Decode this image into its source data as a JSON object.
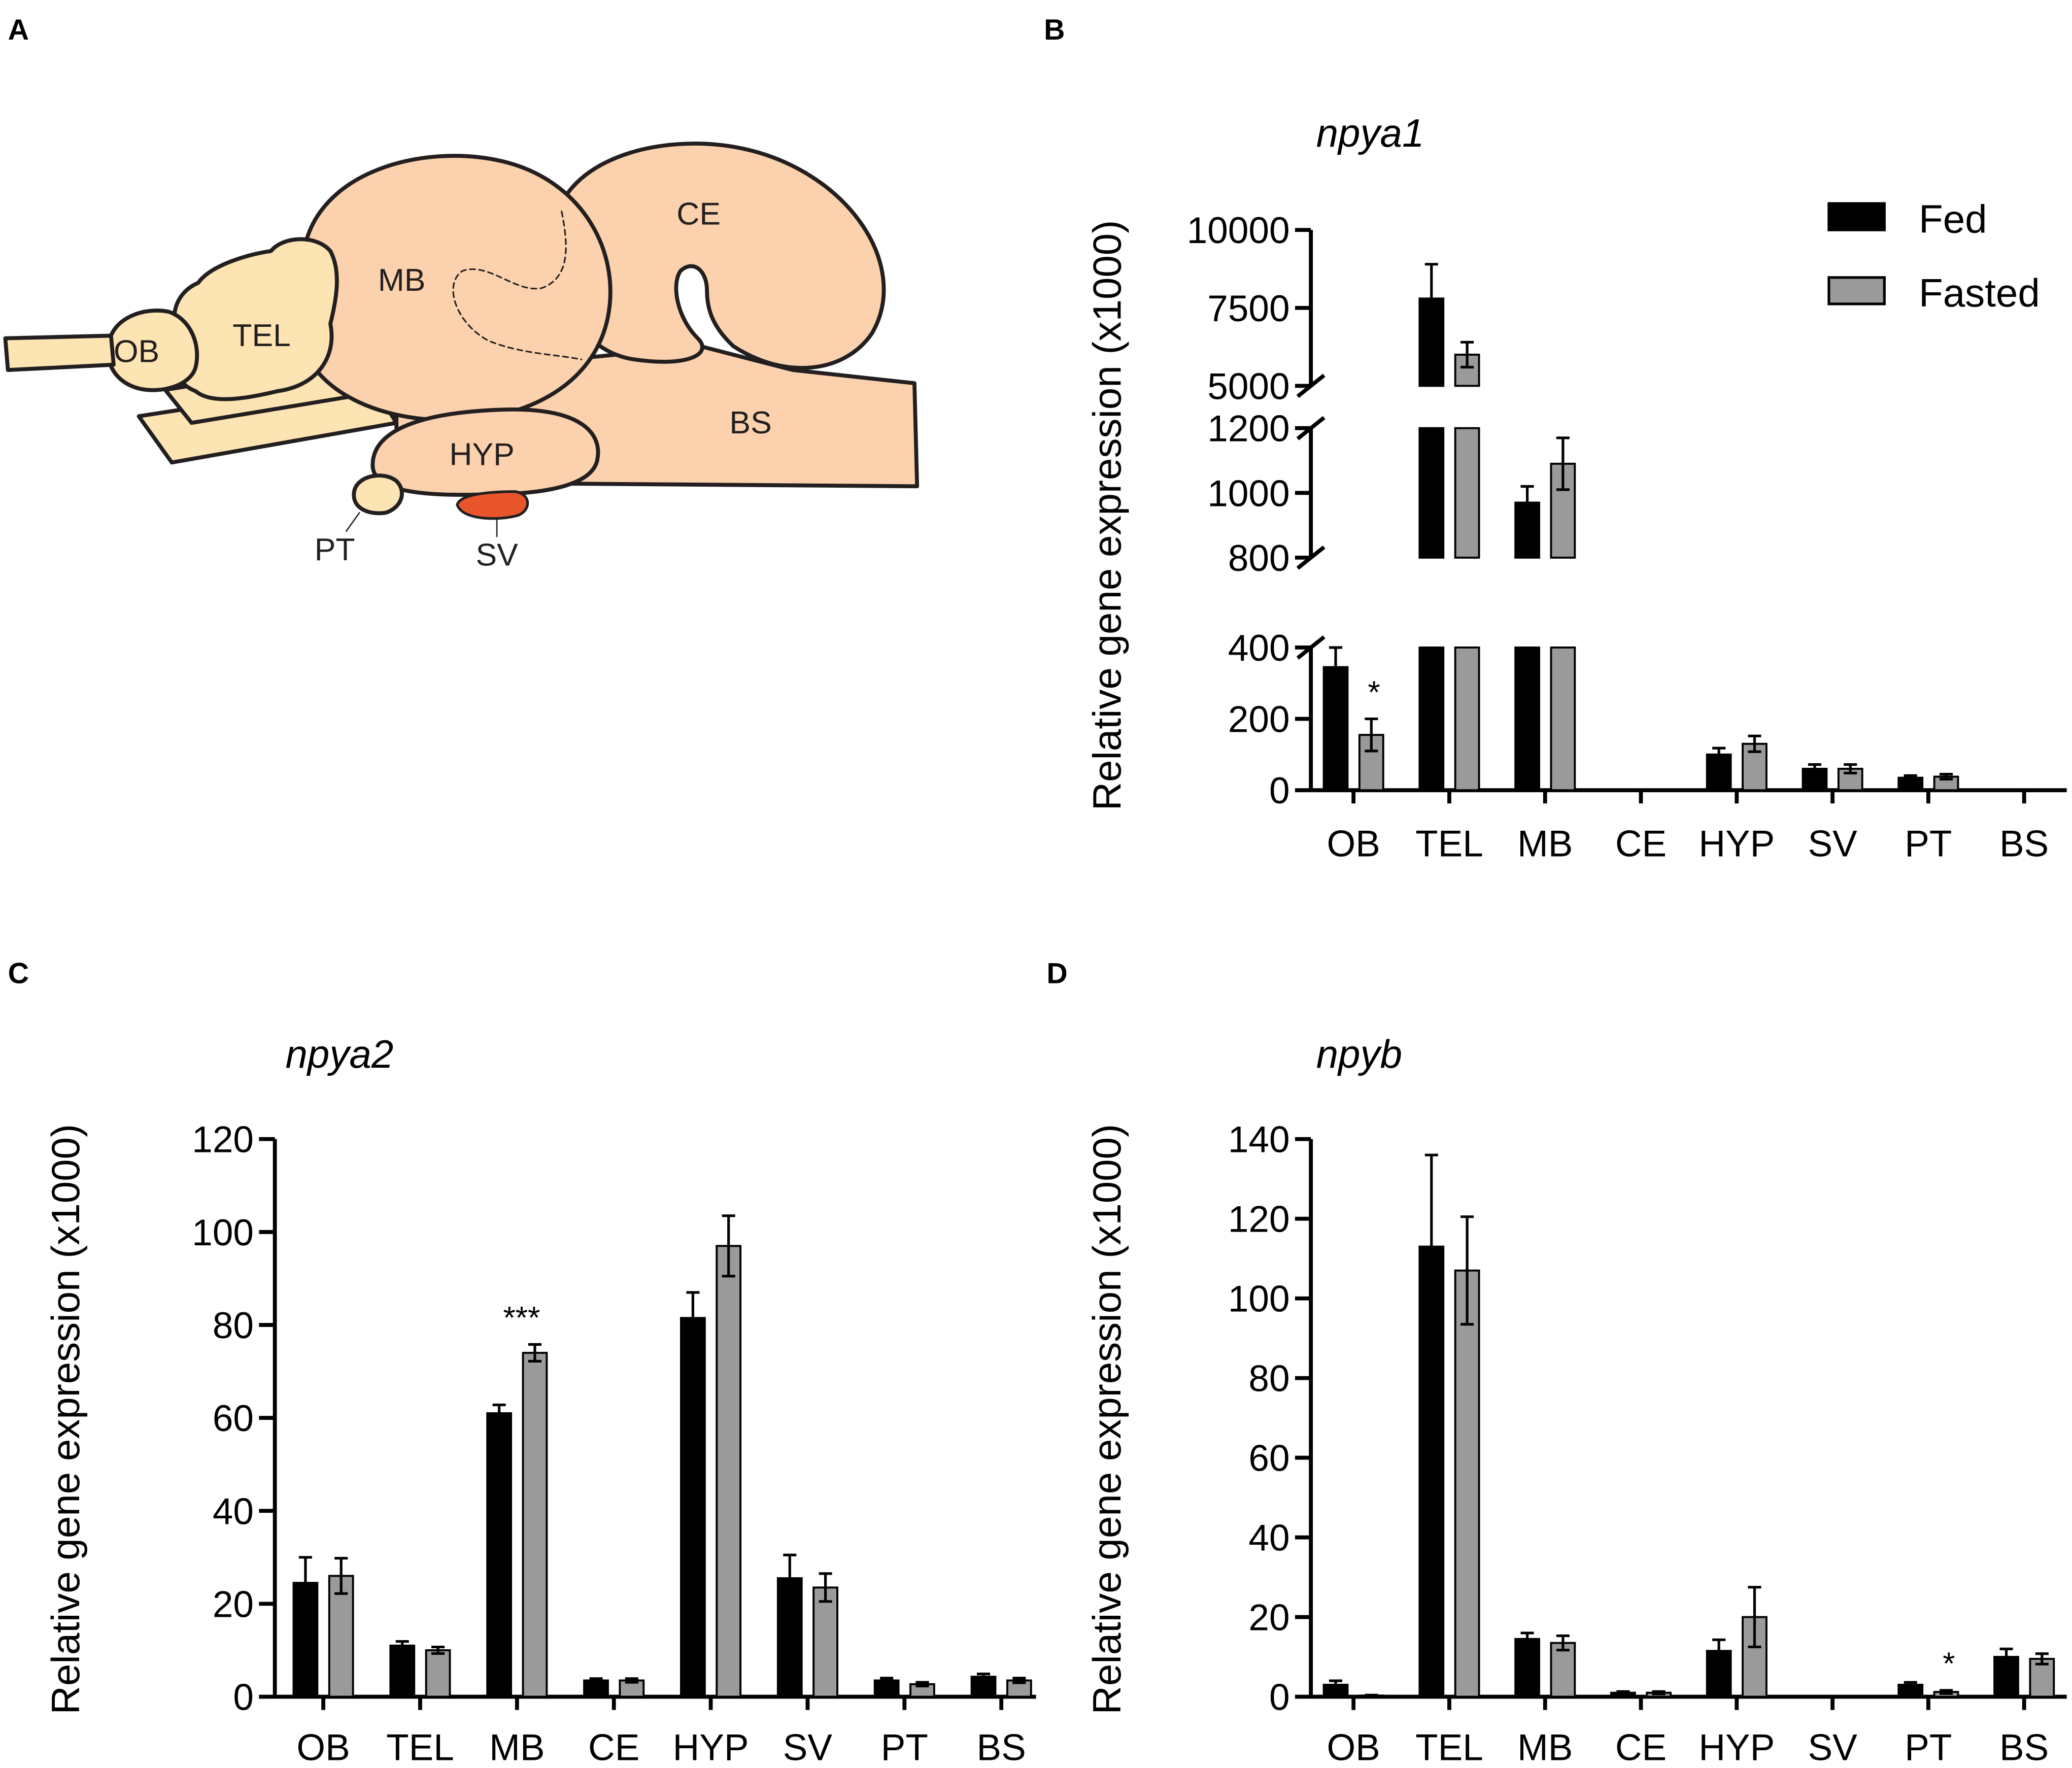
{
  "panel_labels": {
    "a": "A",
    "b": "B",
    "c": "C",
    "d": "D"
  },
  "brain": {
    "labels": {
      "ob": "OB",
      "tel": "TEL",
      "mb": "MB",
      "ce": "CE",
      "hyp": "HYP",
      "bs": "BS",
      "pt": "PT",
      "sv": "SV"
    },
    "colors": {
      "forebrain": "#fde4b3",
      "mid_hind": "#fbd2ad",
      "sv": "#e8552b",
      "outline": "#231f20"
    }
  },
  "colors": {
    "fed": "#000000",
    "fasted": "#9a9a9a",
    "axis": "#000000"
  },
  "chart_data": [
    {
      "id": "b",
      "type": "bar",
      "title": "npya1",
      "ylabel": "Relative gene expression (x1000)",
      "xlabel": "",
      "categories": [
        "OB",
        "TEL",
        "MB",
        "CE",
        "HYP",
        "SV",
        "PT",
        "BS"
      ],
      "legend": {
        "position": "top-right",
        "entries": [
          "Fed",
          "Fasted"
        ]
      },
      "broken_axis": true,
      "ylim_segments": [
        [
          0,
          400
        ],
        [
          800,
          1200
        ],
        [
          5000,
          10000
        ]
      ],
      "yticks": [
        0,
        200,
        400,
        800,
        1000,
        1200,
        5000,
        7500,
        10000
      ],
      "ytick_labels": [
        "0",
        "200",
        "400",
        "800",
        "1000",
        "1200",
        "5000",
        "7500",
        "10000"
      ],
      "series": [
        {
          "name": "Fed",
          "values": [
            345,
            7800,
            970,
            0,
            100,
            60,
            35,
            0
          ],
          "errors": [
            65,
            1100,
            50,
            0,
            18,
            12,
            6,
            0
          ]
        },
        {
          "name": "Fasted",
          "values": [
            155,
            6000,
            1090,
            0,
            130,
            60,
            38,
            0
          ],
          "errors": [
            45,
            400,
            80,
            0,
            22,
            12,
            7,
            0
          ]
        }
      ],
      "annotations": [
        {
          "category": "OB",
          "series": "Fasted",
          "text": "*"
        }
      ]
    },
    {
      "id": "c",
      "type": "bar",
      "title": "npya2",
      "ylabel": "Relative gene expression (x1000)",
      "xlabel": "",
      "categories": [
        "OB",
        "TEL",
        "MB",
        "CE",
        "HYP",
        "SV",
        "PT",
        "BS"
      ],
      "ylim": [
        0,
        120
      ],
      "yticks": [
        0,
        20,
        40,
        60,
        80,
        100,
        120
      ],
      "ytick_labels": [
        "0",
        "20",
        "40",
        "60",
        "80",
        "100",
        "120"
      ],
      "series": [
        {
          "name": "Fed",
          "values": [
            24.5,
            11,
            61,
            3.5,
            81.5,
            25.5,
            3.5,
            4.3
          ],
          "errors": [
            5.5,
            0.9,
            1.8,
            0.4,
            5.5,
            5,
            0.5,
            0.6
          ]
        },
        {
          "name": "Fasted",
          "values": [
            26,
            10,
            74,
            3.5,
            97,
            23.5,
            2.7,
            3.5
          ],
          "errors": [
            3.8,
            0.7,
            1.8,
            0.4,
            6.5,
            3,
            0.4,
            0.5
          ]
        }
      ],
      "annotations": [
        {
          "category": "MB",
          "series": "Fasted",
          "text": "***"
        }
      ]
    },
    {
      "id": "d",
      "type": "bar",
      "title": "npyb",
      "ylabel": "Relative gene expression (x1000)",
      "xlabel": "",
      "categories": [
        "OB",
        "TEL",
        "MB",
        "CE",
        "HYP",
        "SV",
        "PT",
        "BS"
      ],
      "ylim": [
        0,
        140
      ],
      "yticks": [
        0,
        20,
        40,
        60,
        80,
        100,
        120,
        140
      ],
      "ytick_labels": [
        "0",
        "20",
        "40",
        "60",
        "80",
        "100",
        "120",
        "140"
      ],
      "series": [
        {
          "name": "Fed",
          "values": [
            3,
            113,
            14.5,
            1,
            11.5,
            0,
            3,
            10
          ],
          "errors": [
            1,
            23,
            1.5,
            0.3,
            2.8,
            0,
            0.6,
            2
          ]
        },
        {
          "name": "Fasted",
          "values": [
            0.3,
            107,
            13.5,
            1,
            20,
            0,
            1.2,
            9.5
          ],
          "errors": [
            0.1,
            13.5,
            1.8,
            0.3,
            7.5,
            0,
            0.4,
            1.3
          ]
        }
      ],
      "annotations": [
        {
          "category": "PT",
          "series": "Fasted",
          "text": "*"
        }
      ]
    }
  ]
}
